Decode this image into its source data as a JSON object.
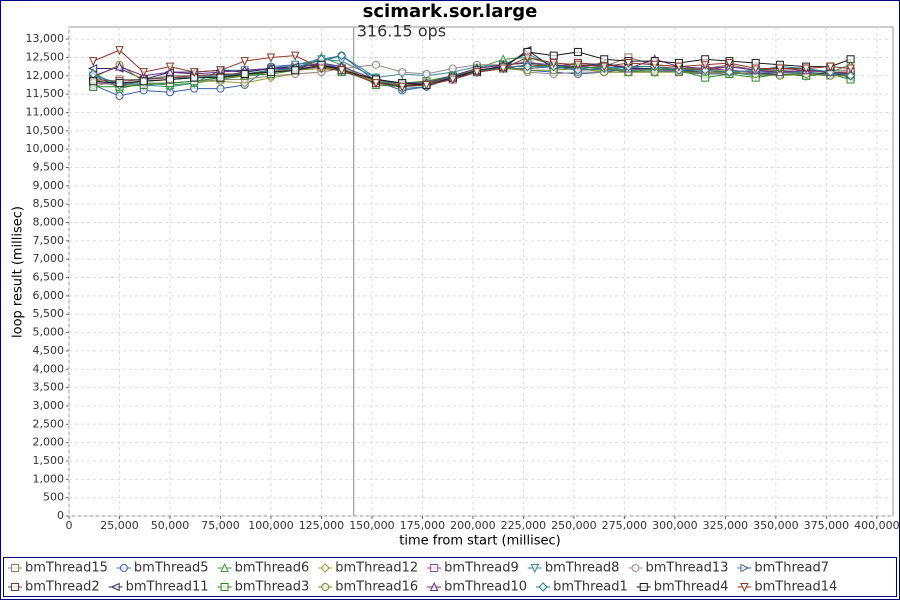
{
  "chart_data": {
    "type": "line",
    "title": "scimark.sor.large",
    "x_label": "time from start (millisec)",
    "y_label": "loop result (millisec)",
    "annotation": {
      "x": 141000,
      "label": "316.15 ops"
    },
    "xlim": [
      0,
      408000
    ],
    "ylim": [
      0,
      13330
    ],
    "grid": true,
    "xticks": [
      0,
      {
        "value": 25000,
        "label": "25,000"
      },
      {
        "value": 50000,
        "label": "50,000"
      },
      {
        "value": 75000,
        "label": "75,000"
      },
      {
        "value": 100000,
        "label": "100,000"
      },
      {
        "value": 125000,
        "label": "125,000"
      },
      {
        "value": 150000,
        "label": "150,000"
      },
      {
        "value": 175000,
        "label": "175,000"
      },
      {
        "value": 200000,
        "label": "200,000"
      },
      {
        "value": 225000,
        "label": "225,000"
      },
      {
        "value": 250000,
        "label": "250,000"
      },
      {
        "value": 275000,
        "label": "275,000"
      },
      {
        "value": 300000,
        "label": "300,000"
      },
      {
        "value": 325000,
        "label": "325,000"
      },
      {
        "value": 350000,
        "label": "350,000"
      },
      {
        "value": 375000,
        "label": "375,000"
      },
      {
        "value": 400000,
        "label": "400,000"
      }
    ],
    "yticks": [
      0,
      500,
      {
        "value": 1000,
        "label": "1,000"
      },
      {
        "value": 1500,
        "label": "1,500"
      },
      {
        "value": 2000,
        "label": "2,000"
      },
      {
        "value": 2500,
        "label": "2,500"
      },
      {
        "value": 3000,
        "label": "3,000"
      },
      {
        "value": 3500,
        "label": "3,500"
      },
      {
        "value": 4000,
        "label": "4,000"
      },
      {
        "value": 4500,
        "label": "4,500"
      },
      {
        "value": 5000,
        "label": "5,000"
      },
      {
        "value": 5500,
        "label": "5,500"
      },
      {
        "value": 6000,
        "label": "6,000"
      },
      {
        "value": 6500,
        "label": "6,500"
      },
      {
        "value": 7000,
        "label": "7,000"
      },
      {
        "value": 7500,
        "label": "7,500"
      },
      {
        "value": 8000,
        "label": "8,000"
      },
      {
        "value": 8500,
        "label": "8,500"
      },
      {
        "value": 9000,
        "label": "9,000"
      },
      {
        "value": 9500,
        "label": "9,500"
      },
      {
        "value": 10000,
        "label": "10,000"
      },
      {
        "value": 10500,
        "label": "10,500"
      },
      {
        "value": 11000,
        "label": "11,000"
      },
      {
        "value": 11500,
        "label": "11,500"
      },
      {
        "value": 12000,
        "label": "12,000"
      },
      {
        "value": 12500,
        "label": "12,500"
      },
      {
        "value": 13000,
        "label": "13,000"
      }
    ],
    "x": [
      12000,
      25000,
      37000,
      50000,
      62000,
      75000,
      87000,
      100000,
      112000,
      125000,
      135000,
      152000,
      165000,
      177000,
      190000,
      202000,
      215000,
      227000,
      240000,
      252000,
      265000,
      277000,
      290000,
      302000,
      315000,
      327000,
      340000,
      352000,
      365000,
      377000,
      387000
    ],
    "series": [
      {
        "name": "bmThread15",
        "color": "#8c7b6b",
        "marker": "square",
        "values": [
          11700,
          11900,
          11900,
          12000,
          12000,
          12000,
          12050,
          12100,
          12200,
          12250,
          12150,
          11900,
          11750,
          11750,
          11950,
          12100,
          12250,
          12400,
          12200,
          12350,
          12250,
          12500,
          12300,
          12250,
          12200,
          12300,
          12150,
          12150,
          12100,
          12150,
          12150
        ]
      },
      {
        "name": "bmThread5",
        "color": "#3a5fa8",
        "marker": "circle",
        "values": [
          11750,
          11450,
          11600,
          11550,
          11650,
          11650,
          11750,
          12250,
          12300,
          12400,
          12550,
          11850,
          11600,
          11700,
          11950,
          12100,
          12250,
          12150,
          12100,
          12050,
          12100,
          12200,
          12150,
          12100,
          12100,
          12100,
          12050,
          12100,
          12100,
          12050,
          12050
        ]
      },
      {
        "name": "bmThread6",
        "color": "#3f9a3f",
        "marker": "triangle-up",
        "values": [
          12100,
          11650,
          11800,
          11750,
          11800,
          11900,
          12000,
          12150,
          12200,
          12500,
          12300,
          11750,
          11700,
          11800,
          11950,
          12200,
          12450,
          12500,
          12300,
          12250,
          12200,
          12150,
          12100,
          12200,
          12200,
          12150,
          12100,
          12150,
          12050,
          12100,
          12300
        ]
      },
      {
        "name": "bmThread12",
        "color": "#9a9a3a",
        "marker": "diamond",
        "values": [
          11900,
          11700,
          11800,
          11800,
          11850,
          11850,
          11800,
          11950,
          12050,
          12100,
          12200,
          11800,
          11750,
          11850,
          12000,
          12150,
          12200,
          12200,
          12250,
          12150,
          12200,
          12100,
          12100,
          12150,
          12200,
          12100,
          12050,
          12050,
          12050,
          12050,
          12100
        ]
      },
      {
        "name": "bmThread9",
        "color": "#8a4a9a",
        "marker": "square",
        "values": [
          11800,
          11800,
          11850,
          11900,
          11950,
          12000,
          12000,
          12100,
          12150,
          12250,
          12200,
          11850,
          11750,
          11750,
          11900,
          12100,
          12300,
          12350,
          12300,
          12200,
          12150,
          12150,
          12200,
          12100,
          12200,
          12150,
          12100,
          12100,
          12150,
          12100,
          12100
        ]
      },
      {
        "name": "bmThread8",
        "color": "#3a8a9a",
        "marker": "triangle-down",
        "values": [
          12000,
          11800,
          11750,
          11700,
          11800,
          12150,
          12150,
          12200,
          12300,
          12450,
          12400,
          11950,
          12050,
          12000,
          12100,
          12250,
          12300,
          12600,
          12250,
          12200,
          12250,
          12150,
          12100,
          12150,
          12050,
          12100,
          12000,
          12050,
          12000,
          12050,
          12000
        ]
      },
      {
        "name": "bmThread13",
        "color": "#9a8a8a",
        "marker": "circle",
        "values": [
          11800,
          11750,
          11800,
          11800,
          11850,
          11900,
          11900,
          12000,
          12050,
          12100,
          12200,
          12300,
          12100,
          12050,
          12200,
          12300,
          12300,
          12100,
          12050,
          12100,
          12100,
          12100,
          12150,
          12100,
          12050,
          12100,
          12050,
          12050,
          12050,
          12050,
          12050
        ]
      },
      {
        "name": "bmThread7",
        "color": "#5a6a8a",
        "marker": "triangle-right",
        "values": [
          12000,
          11700,
          11900,
          11950,
          11950,
          12000,
          12100,
          12200,
          12250,
          12350,
          12200,
          11850,
          11800,
          11850,
          11950,
          12100,
          12200,
          12200,
          12250,
          12150,
          12200,
          12250,
          12150,
          12100,
          12050,
          12050,
          12100,
          12100,
          12050,
          12000,
          12050
        ]
      },
      {
        "name": "bmThread2",
        "color": "#7a3a3a",
        "marker": "square",
        "values": [
          11900,
          11850,
          11900,
          11950,
          12000,
          12050,
          12050,
          12150,
          12200,
          12250,
          12150,
          11800,
          11750,
          11800,
          11950,
          12150,
          12200,
          12300,
          12250,
          12350,
          12300,
          12250,
          12250,
          12200,
          12150,
          12250,
          12150,
          12200,
          12150,
          12100,
          12100
        ]
      },
      {
        "name": "bmThread11",
        "color": "#2a2a5a",
        "marker": "triangle-left",
        "values": [
          12200,
          12200,
          11900,
          12100,
          12100,
          12150,
          12100,
          12200,
          12250,
          12300,
          12200,
          11850,
          11700,
          11800,
          11950,
          12100,
          12200,
          12700,
          12200,
          12250,
          12350,
          12200,
          12200,
          12150,
          12100,
          12100,
          12050,
          12050,
          12000,
          12100,
          11950
        ]
      },
      {
        "name": "bmThread3",
        "color": "#2a8a2a",
        "marker": "square",
        "values": [
          11700,
          11700,
          11750,
          11800,
          11850,
          11950,
          12000,
          12050,
          12150,
          12300,
          12100,
          11900,
          11800,
          11850,
          12000,
          12200,
          12300,
          12350,
          12250,
          12250,
          12200,
          12100,
          12200,
          12150,
          11950,
          12050,
          11950,
          12050,
          12000,
          12050,
          11900
        ]
      },
      {
        "name": "bmThread16",
        "color": "#7a8a2a",
        "marker": "circle",
        "values": [
          11950,
          12300,
          11850,
          11900,
          11950,
          11950,
          12000,
          12100,
          12150,
          12200,
          12200,
          11850,
          11750,
          11800,
          11950,
          12150,
          12200,
          12150,
          12150,
          12200,
          12100,
          12100,
          12100,
          12100,
          12100,
          12100,
          12050,
          12000,
          12050,
          12000,
          12000
        ]
      },
      {
        "name": "bmThread10",
        "color": "#6a2a8a",
        "marker": "triangle-up",
        "values": [
          12000,
          12250,
          12000,
          12100,
          12050,
          12100,
          12150,
          12200,
          12200,
          12350,
          12250,
          11900,
          11800,
          11800,
          12000,
          12200,
          12300,
          12350,
          12300,
          12250,
          12300,
          12200,
          12450,
          12250,
          12200,
          12250,
          12150,
          12100,
          12150,
          12100,
          12050
        ]
      },
      {
        "name": "bmThread1",
        "color": "#2a7a8a",
        "marker": "diamond",
        "values": [
          12050,
          11750,
          11850,
          11900,
          11950,
          12000,
          12050,
          12150,
          12200,
          12450,
          12550,
          11950,
          11650,
          11700,
          12000,
          12100,
          12250,
          12250,
          12250,
          12150,
          12200,
          12250,
          12250,
          12150,
          12150,
          12100,
          12150,
          12250,
          12200,
          12100,
          12000
        ]
      },
      {
        "name": "bmThread4",
        "color": "#1a1a1a",
        "marker": "square",
        "values": [
          11850,
          11800,
          11850,
          11900,
          11950,
          11950,
          12050,
          12100,
          12150,
          12300,
          12150,
          11900,
          11800,
          11750,
          11950,
          12150,
          12250,
          12650,
          12550,
          12650,
          12450,
          12400,
          12400,
          12350,
          12450,
          12400,
          12350,
          12300,
          12250,
          12250,
          12450
        ]
      },
      {
        "name": "bmThread14",
        "color": "#8a3a2a",
        "marker": "triangle-down",
        "values": [
          12400,
          12700,
          12100,
          12250,
          12100,
          12150,
          12400,
          12500,
          12550,
          12200,
          12150,
          11800,
          11700,
          11750,
          11900,
          12100,
          12200,
          12500,
          12350,
          12300,
          12250,
          12350,
          12300,
          12250,
          12300,
          12350,
          12200,
          12200,
          12200,
          12250,
          12200
        ]
      }
    ]
  }
}
